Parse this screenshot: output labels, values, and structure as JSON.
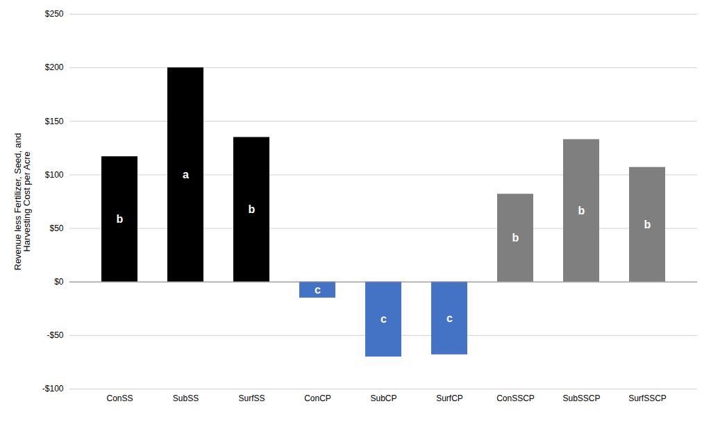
{
  "chart_data": {
    "type": "bar",
    "categories": [
      "ConSS",
      "SubSS",
      "SurfSS",
      "ConCP",
      "SubCP",
      "SurfCP",
      "ConSSCP",
      "SubSSCP",
      "SurfSSCP"
    ],
    "values": [
      117,
      200,
      135,
      -15,
      -70,
      -68,
      82,
      133,
      107
    ],
    "annotations": [
      "b",
      "a",
      "b",
      "c",
      "c",
      "c",
      "b",
      "b",
      "b"
    ],
    "colors": [
      "black",
      "black",
      "black",
      "#4472c4",
      "#4472c4",
      "#4472c4",
      "#7f7f7f",
      "#7f7f7f",
      "#7f7f7f"
    ],
    "ylabel": "Revenue less Fertilizer, Seed, and\nHarvesting Cost per Acre",
    "ylim": [
      -100,
      250
    ],
    "yticks": [
      {
        "value": -100,
        "label": "-$100"
      },
      {
        "value": -50,
        "label": "-$50"
      },
      {
        "value": 0,
        "label": "$0"
      },
      {
        "value": 50,
        "label": "$50"
      },
      {
        "value": 100,
        "label": "$100"
      },
      {
        "value": 150,
        "label": "$150"
      },
      {
        "value": 200,
        "label": "$200"
      },
      {
        "value": 250,
        "label": "$250"
      }
    ],
    "grid": true
  }
}
